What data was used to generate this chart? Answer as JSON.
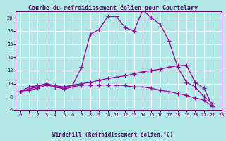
{
  "title": "Courbe du refroidissement éolien pour Courtelary",
  "xlabel": "Windchill (Refroidissement éolien,°C)",
  "bg_color": "#b2e8e8",
  "grid_color": "#ffffff",
  "line_color": "#990099",
  "xlim": [
    -0.5,
    23
  ],
  "ylim": [
    6,
    21
  ],
  "yticks": [
    6,
    8,
    10,
    12,
    14,
    16,
    18,
    20
  ],
  "xticks": [
    0,
    1,
    2,
    3,
    4,
    5,
    6,
    7,
    8,
    9,
    10,
    11,
    12,
    13,
    14,
    15,
    16,
    17,
    18,
    19,
    20,
    21,
    22,
    23
  ],
  "xticklabels": [
    "0",
    "1",
    "2",
    "3",
    "4",
    "5",
    "6",
    "7",
    "8",
    "9",
    "10",
    "11",
    "12",
    "13",
    "14",
    "15",
    "16",
    "17",
    "18",
    "19",
    "20",
    "21",
    "22",
    "23"
  ],
  "series": [
    [
      8.8,
      9.2,
      9.5,
      10.0,
      9.7,
      9.5,
      9.8,
      12.5,
      17.5,
      18.2,
      20.2,
      20.2,
      18.5,
      18.0,
      21.2,
      20.0,
      19.0,
      16.5,
      12.5,
      10.2,
      9.5,
      8.0,
      7.0
    ],
    [
      8.8,
      9.5,
      9.7,
      10.0,
      9.5,
      9.3,
      9.8,
      10.0,
      10.2,
      10.5,
      10.8,
      11.0,
      11.2,
      11.5,
      11.8,
      12.0,
      12.2,
      12.5,
      12.7,
      12.8,
      10.2,
      9.3,
      6.5
    ],
    [
      8.8,
      9.0,
      9.3,
      9.8,
      9.5,
      9.2,
      9.5,
      9.8,
      9.8,
      9.8,
      9.8,
      9.8,
      9.7,
      9.5,
      9.5,
      9.3,
      9.0,
      8.8,
      8.5,
      8.2,
      7.8,
      7.5,
      6.5
    ]
  ],
  "marker": "+",
  "markersize": 4,
  "linewidth": 0.9,
  "title_fontsize": 6.0,
  "label_fontsize": 5.5,
  "tick_fontsize": 5.0,
  "text_color": "#660066",
  "spine_color": "#660066"
}
